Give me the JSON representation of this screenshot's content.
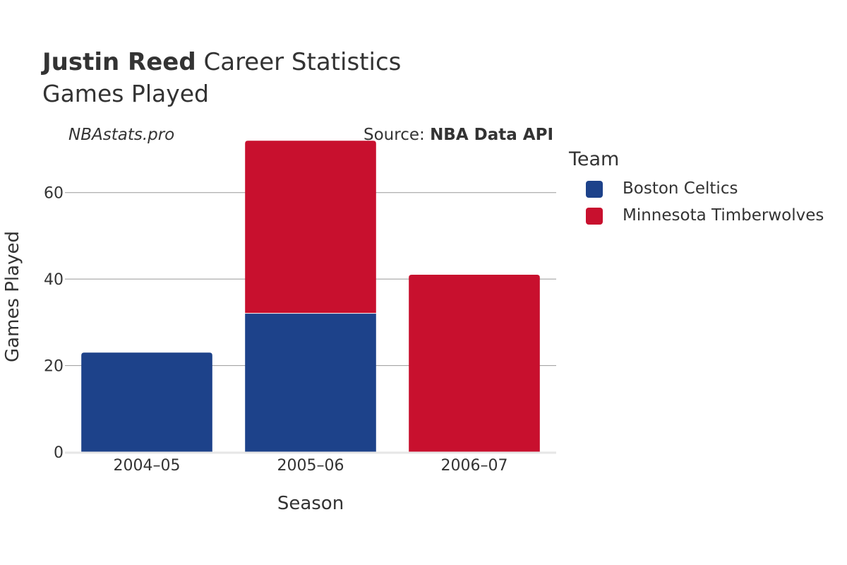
{
  "header": {
    "title_bold": "Justin Reed",
    "title_rest": "Career Statistics",
    "subtitle": "Games Played",
    "watermark": "NBAstats.pro",
    "source_prefix": "Source: ",
    "source_name": "NBA Data API"
  },
  "legend": {
    "title": "Team",
    "items": [
      {
        "label": "Boston Celtics",
        "color": "#1d428a"
      },
      {
        "label": "Minnesota Timberwolves",
        "color": "#c8102e"
      }
    ]
  },
  "chart_data": {
    "type": "bar",
    "stacked": true,
    "categories": [
      "2004–05",
      "2005–06",
      "2006–07"
    ],
    "series": [
      {
        "name": "Boston Celtics",
        "color": "#1d428a",
        "values": [
          23,
          32,
          0
        ]
      },
      {
        "name": "Minnesota Timberwolves",
        "color": "#c8102e",
        "values": [
          0,
          40,
          41
        ]
      }
    ],
    "xlabel": "Season",
    "ylabel": "Games Played",
    "ylim": [
      0,
      75.8
    ],
    "yticks": [
      0,
      20,
      40,
      60
    ],
    "grid": true,
    "legend_position": "right"
  }
}
